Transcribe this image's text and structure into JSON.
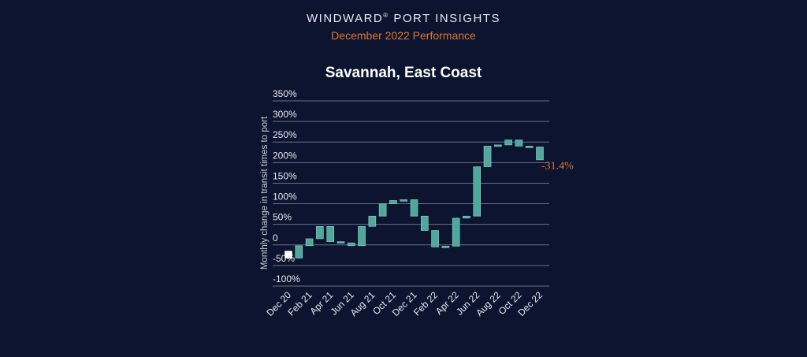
{
  "header": {
    "brand": "WINDWARD",
    "brand_mark": "®",
    "product": "PORT INSIGHTS",
    "subtitle": "December 2022 Performance"
  },
  "chart_data": {
    "type": "waterfall",
    "title": "Savannah, East Coast",
    "y_label": "Monthly change in transit times to port",
    "categories": [
      "Dec 20",
      null,
      "Feb 21",
      null,
      "Apr 21",
      null,
      "Jun 21",
      null,
      "Aug 21",
      null,
      "Oct 21",
      null,
      "Dec 21",
      null,
      "Feb 22",
      null,
      "Apr 22",
      null,
      "Jun 22",
      null,
      "Aug 22",
      null,
      "Oct 22",
      null,
      "Dec 22"
    ],
    "start": -15,
    "values": [
      -17,
      30,
      17,
      30,
      -37,
      -3,
      -7,
      47,
      25,
      30,
      8,
      2,
      -40,
      -35,
      -40,
      2,
      68,
      5,
      120,
      50,
      3,
      12,
      -15,
      -2,
      -31.4
    ],
    "annotation": "-31.4%",
    "color": "#4fa89b",
    "start_color": "#ffffff",
    "annotation_color": "#e0762b",
    "ylim": [
      -100,
      350
    ],
    "yticks": [
      {
        "value": -100,
        "label": "-100%"
      },
      {
        "value": -50,
        "label": "-50%"
      },
      0,
      {
        "value": 50,
        "label": "50%"
      },
      {
        "value": 100,
        "label": "100%"
      },
      {
        "value": 150,
        "label": "150%"
      },
      {
        "value": 200,
        "label": "200%"
      },
      {
        "value": 250,
        "label": "250%"
      },
      {
        "value": 300,
        "label": "300%"
      },
      {
        "value": 350,
        "label": "350%"
      }
    ],
    "grid": true
  }
}
